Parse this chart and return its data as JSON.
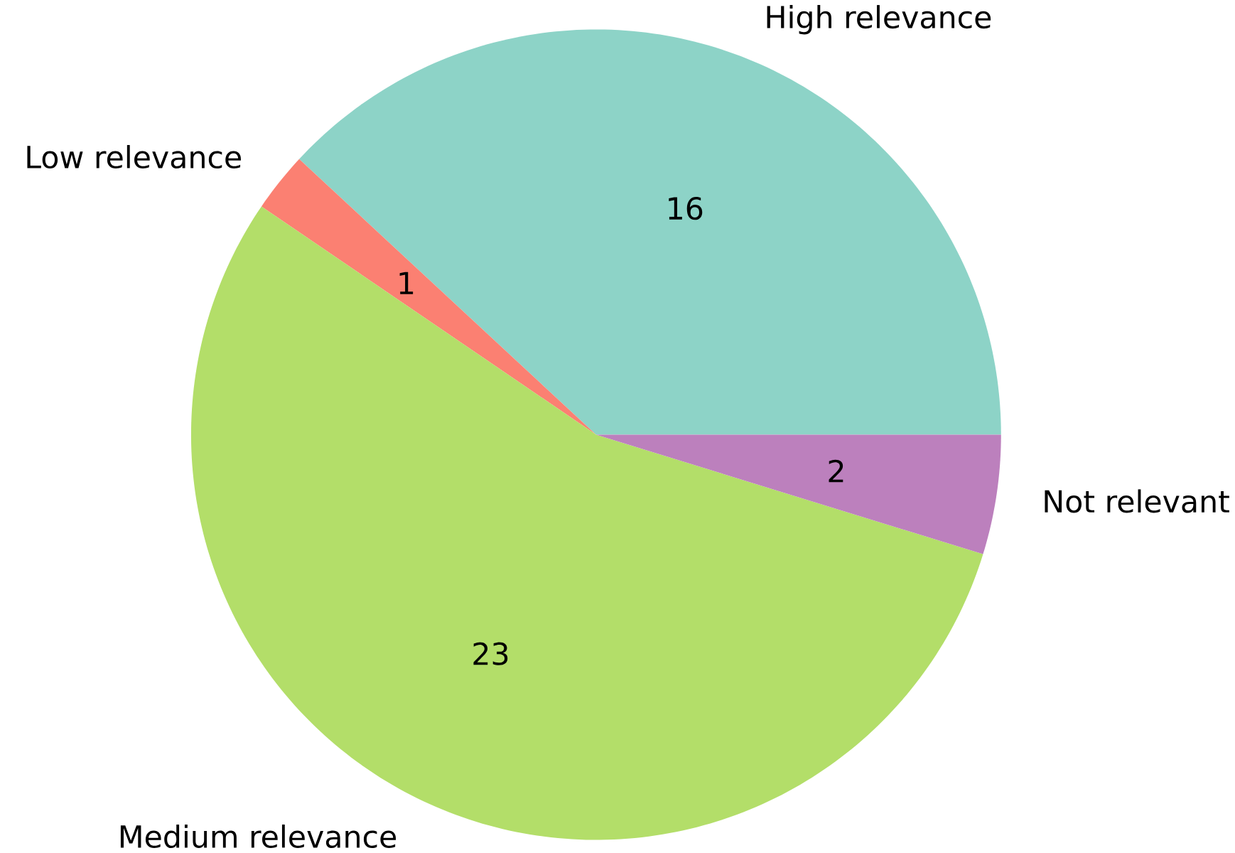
{
  "chart_data": {
    "type": "pie",
    "categories": [
      "High relevance",
      "Low relevance",
      "Medium relevance",
      "Not relevant"
    ],
    "values": [
      16,
      1,
      23,
      2
    ],
    "colors": [
      "#8dd3c7",
      "#fb8072",
      "#b3de69",
      "#bc80bd"
    ],
    "data_labels": true
  }
}
